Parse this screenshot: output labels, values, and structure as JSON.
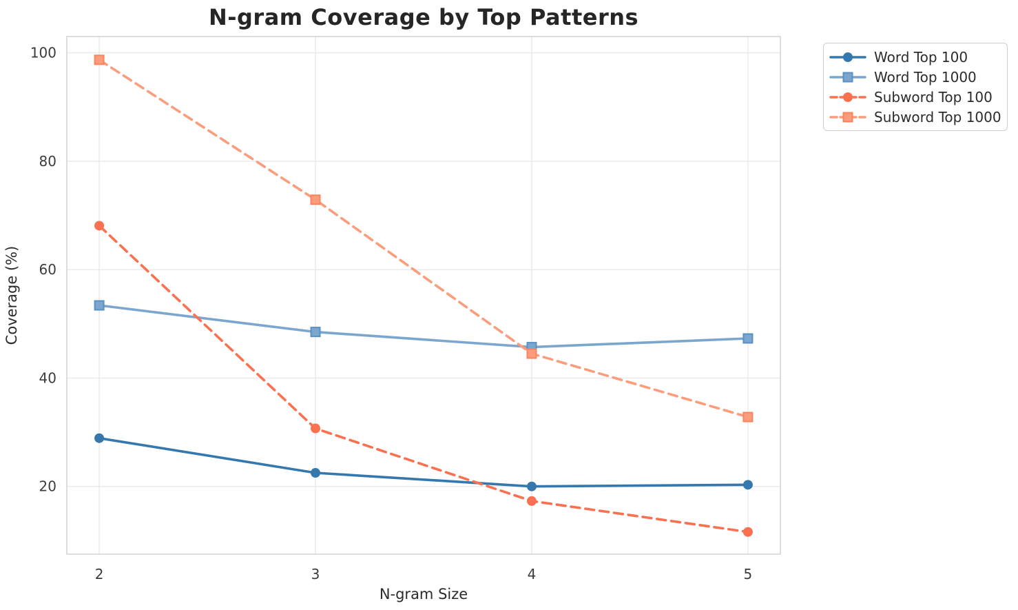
{
  "chart_data": {
    "type": "line",
    "title": "N-gram Coverage by Top Patterns",
    "xlabel": "N-gram Size",
    "ylabel": "Coverage (%)",
    "x": [
      2,
      3,
      4,
      5
    ],
    "x_ticks": [
      2,
      3,
      4,
      5
    ],
    "y_ticks": [
      20,
      40,
      60,
      80,
      100
    ],
    "xlim": [
      1.85,
      5.15
    ],
    "ylim": [
      7.5,
      103
    ],
    "grid": true,
    "legend_position": "upper right, outside plot",
    "style": {
      "background": "#ffffff",
      "grid_color": "#e9e9ec",
      "spine_color": "#d5d5d9",
      "tick_color": "#3b3b3b",
      "title_color": "#262626",
      "legend_border_color": "#cdcdcd"
    },
    "series": [
      {
        "name": "Word Top 100",
        "color": "#3478ae",
        "edge": "#3478ae",
        "marker": "circle",
        "linestyle": "solid",
        "values": [
          28.9,
          22.5,
          20.0,
          20.3
        ]
      },
      {
        "name": "Word Top 1000",
        "color": "#7ba6ce",
        "edge": "#5a90c2",
        "marker": "square",
        "linestyle": "solid",
        "values": [
          53.4,
          48.5,
          45.7,
          47.3
        ]
      },
      {
        "name": "Subword Top 100",
        "color": "#f97150",
        "edge": "#f97150",
        "marker": "circle",
        "linestyle": "dashed",
        "values": [
          68.1,
          30.7,
          17.3,
          11.6
        ]
      },
      {
        "name": "Subword Top 1000",
        "color": "#fb9d7c",
        "edge": "#f9855f",
        "marker": "square",
        "linestyle": "dashed",
        "values": [
          98.7,
          72.9,
          44.5,
          32.8
        ]
      }
    ]
  }
}
